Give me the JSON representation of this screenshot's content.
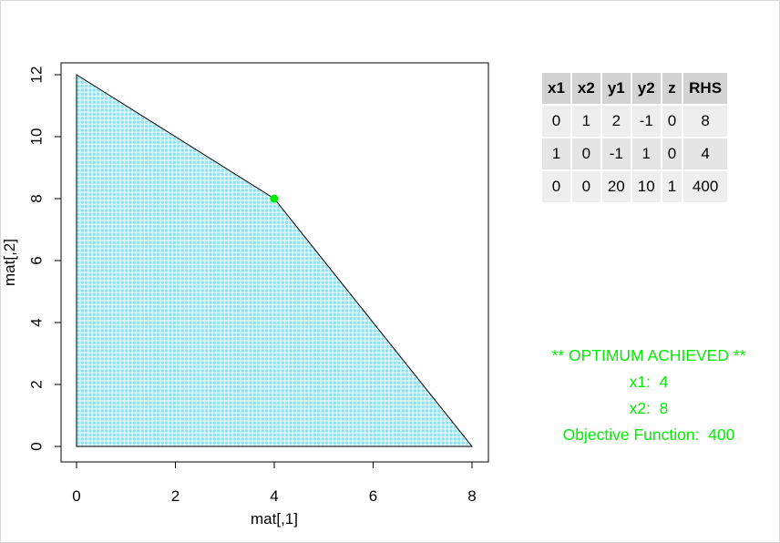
{
  "chart_data": {
    "type": "area",
    "xlabel": "mat[,1]",
    "ylabel": "mat[,2]",
    "xlim": [
      0,
      8
    ],
    "ylim": [
      0,
      12
    ],
    "x_ticks": [
      0,
      2,
      4,
      6,
      8
    ],
    "y_ticks": [
      0,
      2,
      4,
      6,
      8,
      10,
      12
    ],
    "feasible_region": [
      {
        "x": 0,
        "y": 0
      },
      {
        "x": 0,
        "y": 12
      },
      {
        "x": 4,
        "y": 8
      },
      {
        "x": 8,
        "y": 0
      }
    ],
    "optimum_point": {
      "x": 4,
      "y": 8
    },
    "fill_color": "#a6ecf5",
    "point_color": "#00ee00",
    "grid": false
  },
  "tableau": {
    "headers": [
      "x1",
      "x2",
      "y1",
      "y2",
      "z",
      "RHS"
    ],
    "rows": [
      [
        "0",
        "1",
        "2",
        "-1",
        "0",
        "8"
      ],
      [
        "1",
        "0",
        "-1",
        "1",
        "0",
        "4"
      ],
      [
        "0",
        "0",
        "20",
        "10",
        "1",
        "400"
      ]
    ]
  },
  "result": {
    "status": "** OPTIMUM ACHIEVED **",
    "x1_line": "x1:  4",
    "x2_line": "x2:  8",
    "objective_line": "Objective Function:  400",
    "color": "#00ee00"
  }
}
